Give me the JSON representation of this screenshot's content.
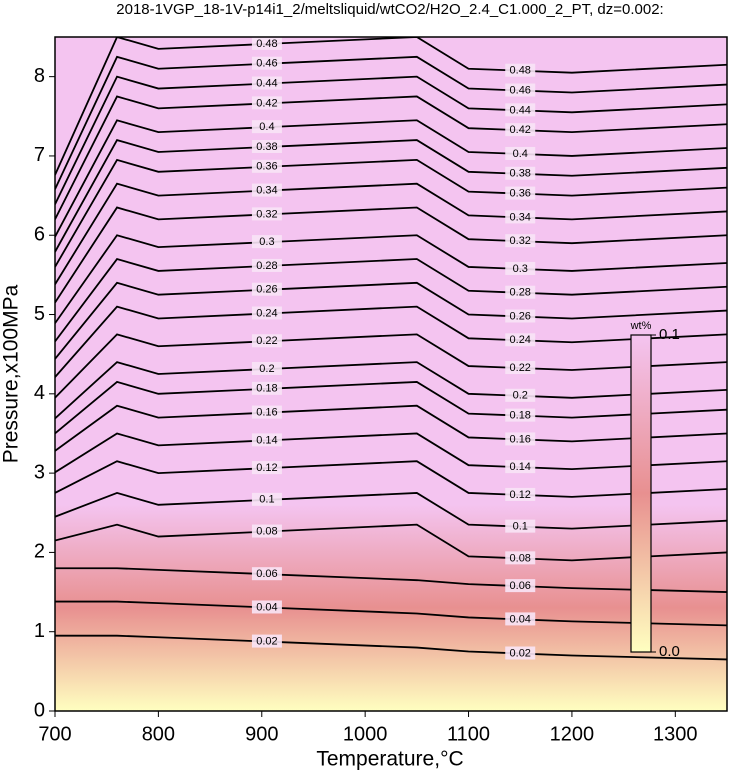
{
  "chart_data": {
    "type": "contour",
    "title": "2018-1VGP_18-1V-p14i1_2/meltsliquid/wtCO2/H2O_2.4_C1.000_2_PT, dz=0.002:",
    "x_label": "Temperature,°C",
    "y_label": "Pressure,x100MPa",
    "xlim": [
      700,
      1350
    ],
    "ylim": [
      0,
      8.5
    ],
    "xticks": [
      700,
      800,
      900,
      1000,
      1100,
      1200,
      1300
    ],
    "yticks": [
      0,
      1,
      2,
      3,
      4,
      5,
      6,
      7,
      8
    ],
    "x": [
      700,
      760,
      800,
      1050,
      1100,
      1200,
      1350
    ],
    "contours": [
      {
        "level": 0.02,
        "values": [
          0.95,
          0.95,
          0.93,
          0.8,
          0.75,
          0.7,
          0.65
        ]
      },
      {
        "level": 0.04,
        "values": [
          1.38,
          1.38,
          1.36,
          1.23,
          1.18,
          1.13,
          1.08
        ]
      },
      {
        "level": 0.06,
        "values": [
          1.8,
          1.8,
          1.78,
          1.65,
          1.6,
          1.55,
          1.5
        ]
      },
      {
        "level": 0.08,
        "values": [
          2.15,
          2.35,
          2.2,
          2.35,
          1.95,
          1.9,
          2.0
        ]
      },
      {
        "level": 0.1,
        "values": [
          2.45,
          2.75,
          2.6,
          2.75,
          2.35,
          2.3,
          2.4
        ]
      },
      {
        "level": 0.12,
        "values": [
          2.75,
          3.15,
          3.0,
          3.15,
          2.75,
          2.7,
          2.8
        ]
      },
      {
        "level": 0.14,
        "values": [
          3.01,
          3.5,
          3.35,
          3.5,
          3.1,
          3.05,
          3.15
        ]
      },
      {
        "level": 0.16,
        "values": [
          3.28,
          3.85,
          3.7,
          3.85,
          3.45,
          3.4,
          3.5
        ]
      },
      {
        "level": 0.18,
        "values": [
          3.5,
          4.15,
          4.0,
          4.15,
          3.75,
          3.7,
          3.8
        ]
      },
      {
        "level": 0.2,
        "values": [
          3.69,
          4.4,
          4.25,
          4.4,
          4.0,
          3.95,
          4.05
        ]
      },
      {
        "level": 0.22,
        "values": [
          3.95,
          4.75,
          4.6,
          4.75,
          4.35,
          4.3,
          4.4
        ]
      },
      {
        "level": 0.24,
        "values": [
          4.21,
          5.1,
          4.95,
          5.1,
          4.7,
          4.65,
          4.75
        ]
      },
      {
        "level": 0.26,
        "values": [
          4.44,
          5.4,
          5.25,
          5.4,
          5.0,
          4.95,
          5.05
        ]
      },
      {
        "level": 0.28,
        "values": [
          4.66,
          5.7,
          5.55,
          5.7,
          5.3,
          5.25,
          5.35
        ]
      },
      {
        "level": 0.3,
        "values": [
          4.89,
          6.0,
          5.85,
          6.0,
          5.6,
          5.55,
          5.65
        ]
      },
      {
        "level": 0.32,
        "values": [
          5.15,
          6.35,
          6.2,
          6.35,
          5.95,
          5.9,
          6.0
        ]
      },
      {
        "level": 0.34,
        "values": [
          5.38,
          6.65,
          6.5,
          6.65,
          6.25,
          6.2,
          6.3
        ]
      },
      {
        "level": 0.36,
        "values": [
          5.6,
          6.95,
          6.8,
          6.95,
          6.55,
          6.5,
          6.6
        ]
      },
      {
        "level": 0.38,
        "values": [
          5.79,
          7.2,
          7.05,
          7.2,
          6.8,
          6.75,
          6.85
        ]
      },
      {
        "level": 0.4,
        "values": [
          5.98,
          7.45,
          7.3,
          7.45,
          7.05,
          7.0,
          7.1
        ]
      },
      {
        "level": 0.42,
        "values": [
          6.2,
          7.75,
          7.6,
          7.75,
          7.35,
          7.3,
          7.4
        ]
      },
      {
        "level": 0.44,
        "values": [
          6.39,
          8.0,
          7.85,
          8.0,
          7.6,
          7.55,
          7.65
        ]
      },
      {
        "level": 0.46,
        "values": [
          6.58,
          8.25,
          8.1,
          8.25,
          7.85,
          7.8,
          7.9
        ]
      },
      {
        "level": 0.48,
        "values": [
          6.76,
          8.5,
          8.35,
          8.5,
          8.1,
          8.05,
          8.15
        ]
      }
    ],
    "colorbar": {
      "label": "wt%",
      "clim": [
        0,
        0.1
      ],
      "ticks": [
        {
          "value": 0,
          "label": "0.0"
        },
        {
          "value": 0.1,
          "label": "0.1"
        }
      ],
      "colormap": [
        "#ffffc0",
        "#e89090",
        "#f4c4f0"
      ]
    }
  }
}
